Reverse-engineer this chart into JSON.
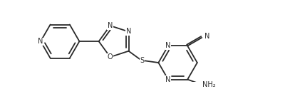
{
  "bg_color": "#ffffff",
  "line_color": "#2a2a2a",
  "line_width": 1.3,
  "font_size": 7.0,
  "fig_width": 4.07,
  "fig_height": 1.25,
  "dpi": 100,
  "xlim": [
    0,
    4.07
  ],
  "ylim": [
    0,
    1.25
  ]
}
